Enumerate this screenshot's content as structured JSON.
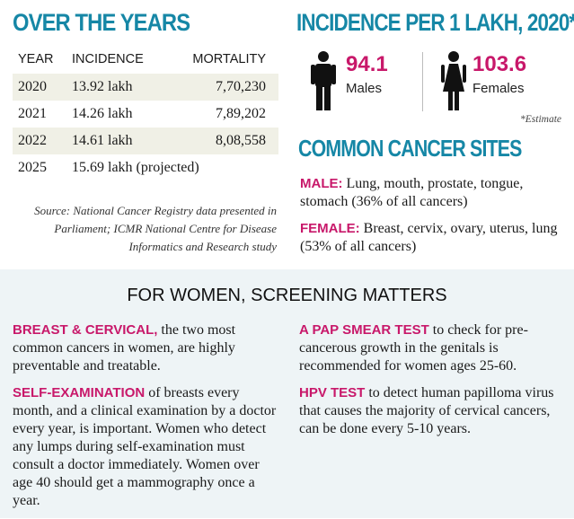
{
  "years": {
    "title": "OVER THE YEARS",
    "headers": {
      "year": "YEAR",
      "incidence": "INCIDENCE",
      "mortality": "MORTALITY"
    },
    "rows": [
      {
        "year": "2020",
        "incidence": "13.92 lakh",
        "mortality": "7,70,230"
      },
      {
        "year": "2021",
        "incidence": "14.26 lakh",
        "mortality": "7,89,202"
      },
      {
        "year": "2022",
        "incidence": "14.61 lakh",
        "mortality": "8,08,558"
      },
      {
        "year": "2025",
        "incidence": "15.69 lakh (projected)",
        "mortality": ""
      }
    ],
    "source": "Source: National Cancer Registry data presented in Parliament; ICMR National Centre for Disease Informatics and Research study"
  },
  "incidence": {
    "title": "INCIDENCE PER 1 LAKH, 2020*",
    "male": {
      "value": "94.1",
      "label": "Males",
      "icon": "male-figure-icon"
    },
    "female": {
      "value": "103.6",
      "label": "Females",
      "icon": "female-figure-icon"
    },
    "note": "*Estimate"
  },
  "sites": {
    "title": "COMMON CANCER SITES",
    "male": {
      "label": "MALE:",
      "text": "Lung, mouth, prostate, tongue, stomach (36% of all cancers)"
    },
    "female": {
      "label": "FEMALE:",
      "text": "Breast, cervix, ovary, uterus, lung (53% of all cancers)"
    }
  },
  "women": {
    "heading": "FOR WOMEN, SCREENING MATTERS",
    "breast": {
      "lead": "BREAST & CERVICAL,",
      "text": "the two most common cancers in women, are highly preventable and treatable."
    },
    "self_exam": {
      "lead": "SELF-EXAMINATION",
      "text": "of breasts every month, and a clinical examination by a doctor every year, is important. Women who detect any lumps during self-examination must consult a doctor immediately. Women over age 40 should get a mammography once a year."
    },
    "pap": {
      "lead": "A PAP SMEAR TEST",
      "text": "to check for pre-cancerous growth in the genitals is recommended for women ages 25-60."
    },
    "hpv": {
      "lead": "HPV TEST",
      "text": "to detect human papilloma virus that causes the majority of cervical cancers, can be done every 5-10 years."
    }
  },
  "colors": {
    "teal": "#1687a6",
    "accent": "#c8186a",
    "panel": "#eef4f6",
    "row_shade": "#f0f0e6"
  }
}
